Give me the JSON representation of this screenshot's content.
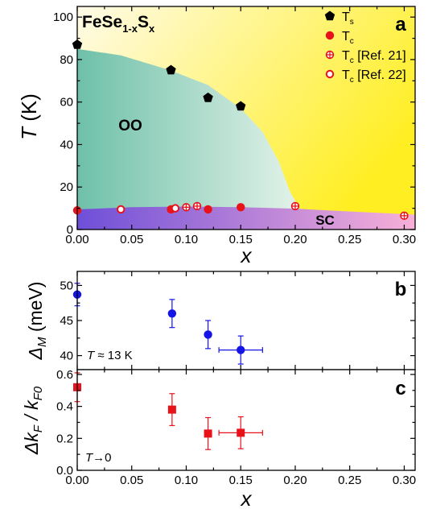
{
  "chart_data": [
    {
      "panel": "a",
      "type": "scatter",
      "compound_label": {
        "base": "FeSe",
        "sub1": "1-x",
        "mid": "S",
        "sub2": "x"
      },
      "xlabel": "x",
      "ylabel_main": "T",
      "ylabel_unit": "(K)",
      "xlim": [
        0,
        0.31
      ],
      "ylim": [
        0,
        105
      ],
      "xticks": [
        0,
        0.05,
        0.1,
        0.15,
        0.2,
        0.25,
        0.3
      ],
      "xtick_labels": [
        "0.00",
        "0.05",
        "0.10",
        "0.15",
        "0.20",
        "0.25",
        "0.30"
      ],
      "yticks": [
        0,
        20,
        40,
        60,
        80,
        100
      ],
      "ytick_labels": [
        "0",
        "20",
        "40",
        "60",
        "80",
        "100"
      ],
      "region_labels": {
        "oo": "OO",
        "sc": "SC"
      },
      "background": {
        "top_left": "#fffbe8",
        "bottom_right": "#ffee22"
      },
      "oo_region": {
        "color_left": "#6ec0a8",
        "color_right": "#e4f3ea",
        "boundary_x": [
          0,
          0.04,
          0.085,
          0.12,
          0.15,
          0.17,
          0.185,
          0.195,
          0.205
        ],
        "boundary_y": [
          85,
          82,
          75,
          68,
          57,
          46,
          32,
          18,
          9
        ]
      },
      "sc_region": {
        "color_left": "#6e4fd8",
        "color_right": "#f8b0d8",
        "top_x": [
          0,
          0.05,
          0.1,
          0.15,
          0.2,
          0.25,
          0.31
        ],
        "top_y": [
          9.5,
          10.5,
          10.8,
          10.5,
          9.8,
          8.5,
          7
        ]
      },
      "legend_position": "top-right",
      "series": [
        {
          "name": "T",
          "name_sub": "s",
          "marker": "pentagon",
          "color": "#000000",
          "x": [
            0.0,
            0.086,
            0.12,
            0.15
          ],
          "y": [
            87,
            75,
            62,
            58
          ]
        },
        {
          "name": "T",
          "name_sub": "c",
          "marker": "circle",
          "color": "#e8121a",
          "x": [
            0.0,
            0.086,
            0.12,
            0.15
          ],
          "y": [
            9,
            9.5,
            9.5,
            10.5
          ]
        },
        {
          "name": "T",
          "name_sub": "c",
          "name_suffix": " [Ref. 21]",
          "marker": "crossed-circle",
          "color": "#e8121a",
          "x": [
            0.1,
            0.11,
            0.2,
            0.3
          ],
          "y": [
            10.5,
            11,
            11,
            6.5
          ]
        },
        {
          "name": "T",
          "name_sub": "c",
          "name_suffix": " [Ref. 22]",
          "marker": "open-circle",
          "color": "#e8121a",
          "x": [
            0.04,
            0.09
          ],
          "y": [
            9.5,
            10
          ]
        }
      ]
    },
    {
      "panel": "b",
      "type": "scatter",
      "ylabel_main": "Δ",
      "ylabel_sub": "M",
      "ylabel_unit": " (meV)",
      "annotation": "T ≈ 13 K",
      "xlim": [
        0,
        0.31
      ],
      "ylim": [
        38,
        52
      ],
      "yticks": [
        40,
        45,
        50
      ],
      "ytick_labels": [
        "40",
        "45",
        "50"
      ],
      "series": [
        {
          "name": "",
          "marker": "circle",
          "color": "#1414e6",
          "x": [
            0.0,
            0.087,
            0.12,
            0.15
          ],
          "y": [
            48.7,
            46.0,
            43.0,
            40.8
          ],
          "yerr": [
            1.6,
            2.0,
            2.0,
            2.0
          ],
          "xerr": [
            0,
            0,
            0,
            0.02
          ]
        }
      ]
    },
    {
      "panel": "c",
      "type": "scatter",
      "ylabel_parts": [
        "Δk",
        "F",
        " / k",
        "F0"
      ],
      "annotation": "T→0",
      "xlabel": "x",
      "xlim": [
        0,
        0.31
      ],
      "ylim": [
        0,
        0.63
      ],
      "xticks": [
        0,
        0.05,
        0.1,
        0.15,
        0.2,
        0.25,
        0.3
      ],
      "xtick_labels": [
        "0.00",
        "0.05",
        "0.10",
        "0.15",
        "0.20",
        "0.25",
        "0.30"
      ],
      "yticks": [
        0,
        0.2,
        0.4,
        0.6
      ],
      "ytick_labels": [
        "0.0",
        "0.2",
        "0.4",
        "0.6"
      ],
      "series": [
        {
          "name": "",
          "marker": "square",
          "color": "#e8121a",
          "x": [
            0.0,
            0.087,
            0.12,
            0.15
          ],
          "y": [
            0.52,
            0.38,
            0.23,
            0.235
          ],
          "yerr": [
            0.09,
            0.1,
            0.1,
            0.1
          ],
          "xerr": [
            0,
            0,
            0,
            0.02
          ]
        }
      ]
    }
  ]
}
